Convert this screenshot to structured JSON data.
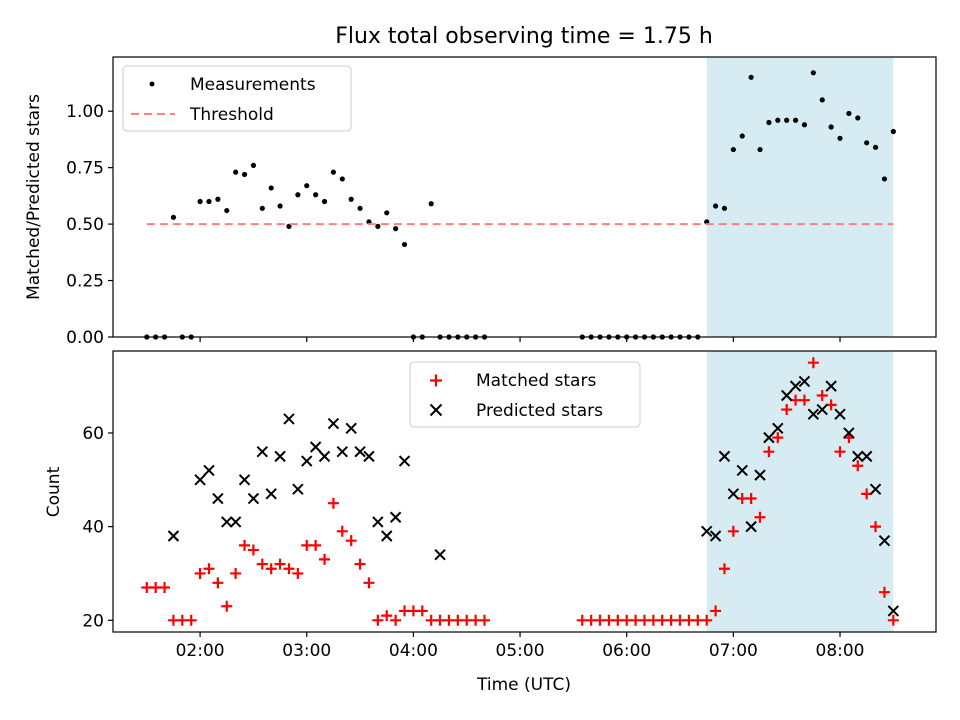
{
  "chart_data": [
    {
      "type": "scatter",
      "title": "Flux total observing time = 1.75 h",
      "xlabel": "",
      "ylabel": "Matched/Predicted stars",
      "xlim": [
        "01:11",
        "08:54"
      ],
      "ylim": [
        0,
        1.24
      ],
      "yticks": [
        0.0,
        0.25,
        0.5,
        0.75,
        1.0
      ],
      "ytick_labels": [
        "0.00",
        "0.25",
        "0.50",
        "0.75",
        "1.00"
      ],
      "grid": false,
      "legend": "top-left",
      "shaded_region": {
        "x0": "06:45",
        "x1": "08:30",
        "color": "#add8e6"
      },
      "series": [
        {
          "name": "Measurements",
          "kind": "points",
          "color": "#000000",
          "x": [
            "01:30",
            "01:35",
            "01:40",
            "01:45",
            "01:50",
            "01:55",
            "02:00",
            "02:05",
            "02:10",
            "02:15",
            "02:20",
            "02:25",
            "02:30",
            "02:35",
            "02:40",
            "02:45",
            "02:50",
            "02:55",
            "03:00",
            "03:05",
            "03:10",
            "03:15",
            "03:20",
            "03:25",
            "03:30",
            "03:35",
            "03:40",
            "03:45",
            "03:50",
            "03:55",
            "04:00",
            "04:05",
            "04:10",
            "04:15",
            "04:20",
            "04:25",
            "04:30",
            "04:35",
            "04:40",
            "05:35",
            "05:40",
            "05:45",
            "05:50",
            "05:55",
            "06:00",
            "06:05",
            "06:10",
            "06:15",
            "06:20",
            "06:25",
            "06:30",
            "06:35",
            "06:40",
            "06:45",
            "06:50",
            "06:55",
            "07:00",
            "07:05",
            "07:10",
            "07:15",
            "07:20",
            "07:25",
            "07:30",
            "07:35",
            "07:40",
            "07:45",
            "07:50",
            "07:55",
            "08:00",
            "08:05",
            "08:10",
            "08:15",
            "08:20",
            "08:25",
            "08:30"
          ],
          "y": [
            0,
            0,
            0,
            0.53,
            0,
            0,
            0.6,
            0.6,
            0.61,
            0.56,
            0.73,
            0.72,
            0.76,
            0.57,
            0.66,
            0.58,
            0.49,
            0.63,
            0.67,
            0.63,
            0.6,
            0.73,
            0.7,
            0.61,
            0.57,
            0.51,
            0.49,
            0.55,
            0.48,
            0.41,
            0,
            0,
            0.59,
            0,
            0,
            0,
            0,
            0,
            0,
            0,
            0,
            0,
            0,
            0,
            0,
            0,
            0,
            0,
            0,
            0,
            0,
            0,
            0,
            0.51,
            0.58,
            0.57,
            0.83,
            0.89,
            1.15,
            0.83,
            0.95,
            0.96,
            0.96,
            0.96,
            0.94,
            1.17,
            1.05,
            0.93,
            0.88,
            0.99,
            0.97,
            0.86,
            0.84,
            0.7,
            0.91
          ]
        },
        {
          "name": "Threshold",
          "kind": "dashed-line",
          "color": "#ff7f7f",
          "x": [
            "01:30",
            "08:30"
          ],
          "y": [
            0.5,
            0.5
          ]
        }
      ]
    },
    {
      "type": "scatter",
      "title": "",
      "xlabel": "Time (UTC)",
      "ylabel": "Count",
      "xlim": [
        "01:11",
        "08:54"
      ],
      "ylim": [
        17.5,
        77.5
      ],
      "yticks": [
        20,
        40,
        60
      ],
      "ytick_labels": [
        "20",
        "40",
        "60"
      ],
      "xticks": [
        "02:00",
        "03:00",
        "04:00",
        "05:00",
        "06:00",
        "07:00",
        "08:00"
      ],
      "grid": false,
      "legend": "top-center",
      "shaded_region": {
        "x0": "06:45",
        "x1": "08:30",
        "color": "#add8e6"
      },
      "series": [
        {
          "name": "Matched stars",
          "kind": "plus",
          "color": "#ff0000",
          "x": [
            "01:30",
            "01:35",
            "01:40",
            "01:45",
            "01:50",
            "01:55",
            "02:00",
            "02:05",
            "02:10",
            "02:15",
            "02:20",
            "02:25",
            "02:30",
            "02:35",
            "02:40",
            "02:45",
            "02:50",
            "02:55",
            "03:00",
            "03:05",
            "03:10",
            "03:15",
            "03:20",
            "03:25",
            "03:30",
            "03:35",
            "03:40",
            "03:45",
            "03:50",
            "03:55",
            "04:00",
            "04:05",
            "04:10",
            "04:15",
            "04:20",
            "04:25",
            "04:30",
            "04:35",
            "04:40",
            "05:35",
            "05:40",
            "05:45",
            "05:50",
            "05:55",
            "06:00",
            "06:05",
            "06:10",
            "06:15",
            "06:20",
            "06:25",
            "06:30",
            "06:35",
            "06:40",
            "06:45",
            "06:50",
            "06:55",
            "07:00",
            "07:05",
            "07:10",
            "07:15",
            "07:20",
            "07:25",
            "07:30",
            "07:35",
            "07:40",
            "07:45",
            "07:50",
            "07:55",
            "08:00",
            "08:05",
            "08:10",
            "08:15",
            "08:20",
            "08:25",
            "08:30"
          ],
          "y": [
            27,
            27,
            27,
            20,
            20,
            20,
            30,
            31,
            28,
            23,
            30,
            36,
            35,
            32,
            31,
            32,
            31,
            30,
            36,
            36,
            33,
            45,
            39,
            37,
            32,
            28,
            20,
            21,
            20,
            22,
            22,
            22,
            20,
            20,
            20,
            20,
            20,
            20,
            20,
            20,
            20,
            20,
            20,
            20,
            20,
            20,
            20,
            20,
            20,
            20,
            20,
            20,
            20,
            20,
            22,
            31,
            39,
            46,
            46,
            42,
            56,
            59,
            65,
            67,
            67,
            75,
            68,
            66,
            56,
            59,
            53,
            47,
            40,
            26,
            20
          ]
        },
        {
          "name": "Predicted stars",
          "kind": "cross",
          "color": "#000000",
          "x": [
            "01:45",
            "02:00",
            "02:05",
            "02:10",
            "02:15",
            "02:20",
            "02:25",
            "02:30",
            "02:35",
            "02:40",
            "02:45",
            "02:50",
            "02:55",
            "03:00",
            "03:05",
            "03:10",
            "03:15",
            "03:20",
            "03:25",
            "03:30",
            "03:35",
            "03:40",
            "03:45",
            "03:50",
            "03:55",
            "04:15",
            "06:45",
            "06:50",
            "06:55",
            "07:00",
            "07:05",
            "07:10",
            "07:15",
            "07:20",
            "07:25",
            "07:30",
            "07:35",
            "07:40",
            "07:45",
            "07:50",
            "07:55",
            "08:00",
            "08:05",
            "08:10",
            "08:15",
            "08:20",
            "08:25",
            "08:30"
          ],
          "y": [
            38,
            50,
            52,
            46,
            41,
            41,
            50,
            46,
            56,
            47,
            55,
            63,
            48,
            54,
            57,
            55,
            62,
            56,
            61,
            56,
            55,
            41,
            38,
            42,
            54,
            34,
            39,
            38,
            55,
            47,
            52,
            40,
            51,
            59,
            61,
            68,
            70,
            71,
            64,
            65,
            70,
            64,
            60,
            55,
            55,
            48,
            37,
            22
          ]
        }
      ]
    }
  ]
}
